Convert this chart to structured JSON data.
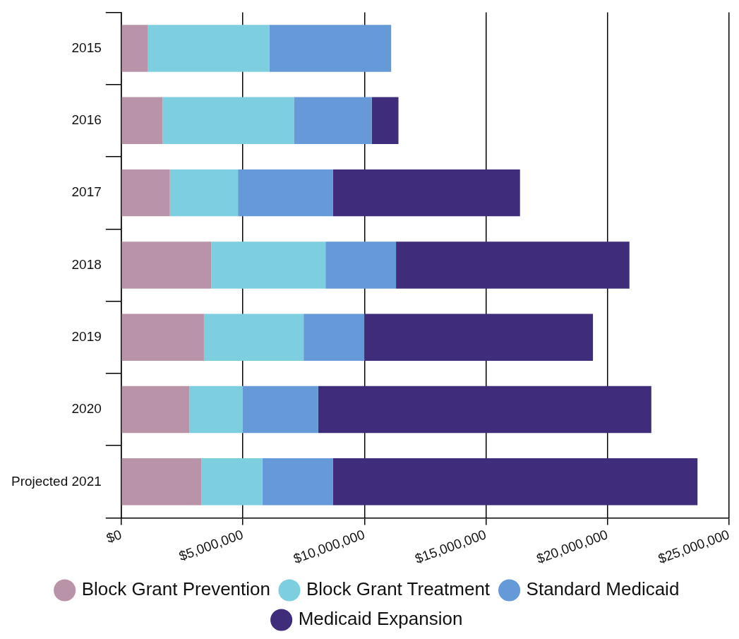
{
  "chart_data": {
    "type": "bar",
    "orientation": "horizontal",
    "stacked": true,
    "categories": [
      "2015",
      "2016",
      "2017",
      "2018",
      "2019",
      "2020",
      "Projected 2021"
    ],
    "series": [
      {
        "name": "Block Grant Prevention",
        "color": "#b994a9",
        "values": [
          1100000,
          1700000,
          2000000,
          3700000,
          3400000,
          2800000,
          3300000
        ]
      },
      {
        "name": "Block Grant Treatment",
        "color": "#7dcfdf",
        "values": [
          5000000,
          5400000,
          2800000,
          4700000,
          4100000,
          2200000,
          2500000
        ]
      },
      {
        "name": "Standard Medicaid",
        "color": "#6699d8",
        "values": [
          5000000,
          3200000,
          3900000,
          2900000,
          2500000,
          3100000,
          2900000
        ]
      },
      {
        "name": "Medicaid Expansion",
        "color": "#3f2c7a",
        "values": [
          null,
          1100000,
          7700000,
          9600000,
          9400000,
          13700000,
          15000000
        ]
      }
    ],
    "xlim": [
      0,
      25000000
    ],
    "xticks": [
      {
        "value": 0,
        "label": "$0"
      },
      {
        "value": 5000000,
        "label": "$5,000,000"
      },
      {
        "value": 10000000,
        "label": "$10,000,000"
      },
      {
        "value": 15000000,
        "label": "$15,000,000"
      },
      {
        "value": 20000000,
        "label": "$20,000,000"
      },
      {
        "value": 25000000,
        "label": "$25,000,000"
      }
    ],
    "grid": "x",
    "legend": "bottom"
  }
}
